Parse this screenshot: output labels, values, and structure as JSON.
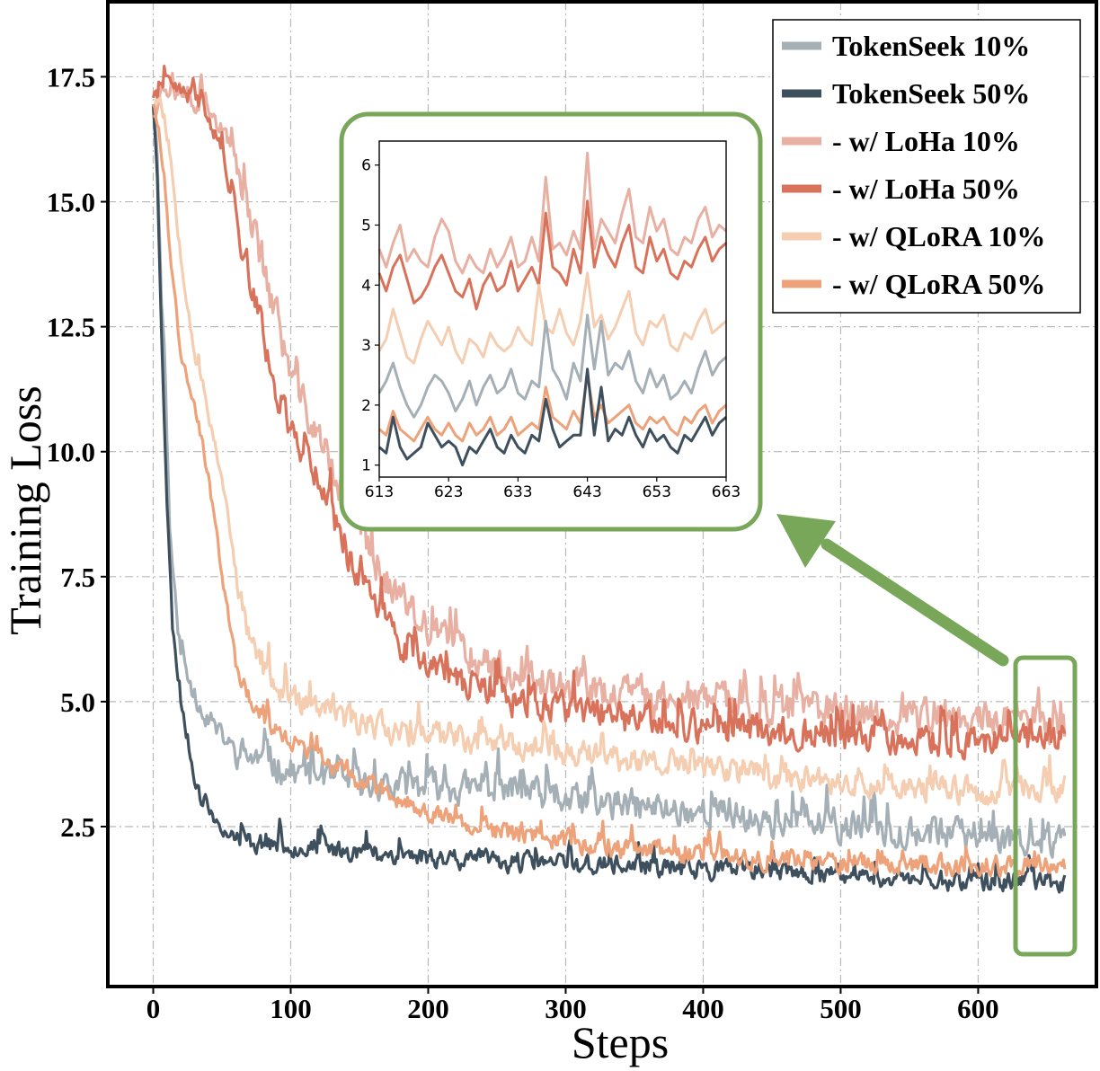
{
  "chart_data": {
    "type": "line",
    "title": "",
    "xlabel": "Steps",
    "ylabel": "Training Loss",
    "xlim": [
      -33,
      686
    ],
    "ylim": [
      -0.7,
      19
    ],
    "xticks": [
      0,
      100,
      200,
      300,
      400,
      500,
      600
    ],
    "xtick_labels": [
      "0",
      "100",
      "200",
      "300",
      "400",
      "500",
      "600"
    ],
    "yticks": [
      2.5,
      5.0,
      7.5,
      10.0,
      12.5,
      15.0,
      17.5
    ],
    "ytick_labels": [
      "2.5",
      "5.0",
      "7.5",
      "10.0",
      "12.5",
      "15.0",
      "17.5"
    ],
    "grid": true,
    "legend_position": "top-right",
    "series": [
      {
        "name": "TokenSeek 10%",
        "color": "#a4afb6",
        "anchors": [
          [
            0,
            17
          ],
          [
            3,
            16
          ],
          [
            6,
            13
          ],
          [
            8,
            12.2
          ],
          [
            12,
            8.5
          ],
          [
            16,
            7
          ],
          [
            20,
            6
          ],
          [
            25,
            5.5
          ],
          [
            30,
            5.1
          ],
          [
            40,
            4.6
          ],
          [
            50,
            4.3
          ],
          [
            60,
            4
          ],
          [
            80,
            3.8
          ],
          [
            100,
            3.6
          ],
          [
            150,
            3.3
          ],
          [
            200,
            3.3
          ],
          [
            250,
            3.2
          ],
          [
            300,
            3.0
          ],
          [
            350,
            2.9
          ],
          [
            400,
            2.8
          ],
          [
            450,
            2.6
          ],
          [
            500,
            2.5
          ],
          [
            550,
            2.4
          ],
          [
            600,
            2.3
          ],
          [
            640,
            2.2
          ],
          [
            663,
            2.3
          ]
        ],
        "noise": 0.35,
        "seed": 11
      },
      {
        "name": "TokenSeek 50%",
        "color": "#3e4f5d",
        "anchors": [
          [
            0,
            17
          ],
          [
            3,
            15.5
          ],
          [
            6,
            12.5
          ],
          [
            10,
            9
          ],
          [
            14,
            6.5
          ],
          [
            20,
            5
          ],
          [
            25,
            4.2
          ],
          [
            30,
            3.5
          ],
          [
            35,
            3.0
          ],
          [
            45,
            2.6
          ],
          [
            55,
            2.35
          ],
          [
            70,
            2.2
          ],
          [
            100,
            2.1
          ],
          [
            150,
            2.0
          ],
          [
            200,
            1.9
          ],
          [
            250,
            1.8
          ],
          [
            300,
            1.75
          ],
          [
            350,
            1.7
          ],
          [
            400,
            1.65
          ],
          [
            450,
            1.6
          ],
          [
            500,
            1.5
          ],
          [
            550,
            1.45
          ],
          [
            600,
            1.4
          ],
          [
            663,
            1.4
          ]
        ],
        "noise": 0.22,
        "seed": 23
      },
      {
        "name": "- w/ LoHa 10%",
        "color": "#e8b0a2",
        "anchors": [
          [
            0,
            16.8
          ],
          [
            5,
            17.2
          ],
          [
            10,
            17.3
          ],
          [
            20,
            17.2
          ],
          [
            30,
            17.0
          ],
          [
            40,
            17.0
          ],
          [
            50,
            16.4
          ],
          [
            60,
            15.8
          ],
          [
            70,
            14.8
          ],
          [
            80,
            13.7
          ],
          [
            90,
            12.6
          ],
          [
            100,
            11.5
          ],
          [
            120,
            10.3
          ],
          [
            140,
            9.0
          ],
          [
            160,
            7.8
          ],
          [
            180,
            7.0
          ],
          [
            200,
            6.4
          ],
          [
            250,
            5.7
          ],
          [
            300,
            5.3
          ],
          [
            350,
            5.1
          ],
          [
            400,
            5.0
          ],
          [
            450,
            4.9
          ],
          [
            500,
            4.8
          ],
          [
            550,
            4.7
          ],
          [
            600,
            4.6
          ],
          [
            663,
            4.5
          ]
        ],
        "noise": 0.4,
        "seed": 37
      },
      {
        "name": "- w/ LoHa 50%",
        "color": "#d9725a",
        "anchors": [
          [
            0,
            16.9
          ],
          [
            5,
            17.3
          ],
          [
            10,
            17.3
          ],
          [
            20,
            17.2
          ],
          [
            30,
            17.1
          ],
          [
            40,
            16.8
          ],
          [
            50,
            16.0
          ],
          [
            60,
            14.8
          ],
          [
            70,
            13.5
          ],
          [
            80,
            12.3
          ],
          [
            90,
            11.2
          ],
          [
            100,
            10.5
          ],
          [
            120,
            9.5
          ],
          [
            140,
            8.0
          ],
          [
            160,
            7.0
          ],
          [
            180,
            6.2
          ],
          [
            200,
            5.7
          ],
          [
            250,
            5.1
          ],
          [
            300,
            4.8
          ],
          [
            350,
            4.6
          ],
          [
            400,
            4.5
          ],
          [
            450,
            4.4
          ],
          [
            500,
            4.3
          ],
          [
            550,
            4.2
          ],
          [
            600,
            4.2
          ],
          [
            663,
            4.3
          ]
        ],
        "noise": 0.35,
        "seed": 41
      },
      {
        "name": "- w/ QLoRA 10%",
        "color": "#f5cdb0",
        "anchors": [
          [
            0,
            17
          ],
          [
            4,
            17.1
          ],
          [
            8,
            16.7
          ],
          [
            12,
            16.0
          ],
          [
            16,
            15.0
          ],
          [
            20,
            14.0
          ],
          [
            25,
            13.0
          ],
          [
            30,
            12.0
          ],
          [
            40,
            10.8
          ],
          [
            50,
            9.5
          ],
          [
            60,
            7.5
          ],
          [
            70,
            6.3
          ],
          [
            80,
            5.6
          ],
          [
            100,
            5.0
          ],
          [
            150,
            4.6
          ],
          [
            200,
            4.3
          ],
          [
            250,
            4.2
          ],
          [
            300,
            4.0
          ],
          [
            350,
            3.8
          ],
          [
            400,
            3.7
          ],
          [
            450,
            3.5
          ],
          [
            500,
            3.4
          ],
          [
            550,
            3.3
          ],
          [
            600,
            3.2
          ],
          [
            663,
            3.3
          ]
        ],
        "noise": 0.3,
        "seed": 53
      },
      {
        "name": "- w/ QLoRA 50%",
        "color": "#eda27a",
        "anchors": [
          [
            0,
            17
          ],
          [
            4,
            16.5
          ],
          [
            8,
            15.5
          ],
          [
            12,
            14
          ],
          [
            16,
            13
          ],
          [
            20,
            12
          ],
          [
            25,
            11.5
          ],
          [
            30,
            11
          ],
          [
            40,
            9.5
          ],
          [
            50,
            7.5
          ],
          [
            60,
            5.8
          ],
          [
            70,
            5.0
          ],
          [
            80,
            4.6
          ],
          [
            100,
            4.2
          ],
          [
            150,
            3.4
          ],
          [
            200,
            2.8
          ],
          [
            250,
            2.4
          ],
          [
            300,
            2.2
          ],
          [
            350,
            2.0
          ],
          [
            400,
            1.9
          ],
          [
            450,
            1.85
          ],
          [
            500,
            1.8
          ],
          [
            550,
            1.75
          ],
          [
            600,
            1.7
          ],
          [
            663,
            1.75
          ]
        ],
        "noise": 0.22,
        "seed": 67
      }
    ],
    "inset": {
      "xlim": [
        613,
        663
      ],
      "ylim": [
        0.8,
        6.4
      ],
      "xticks": [
        613,
        623,
        633,
        643,
        653,
        663
      ],
      "xtick_labels": [
        "613",
        "623",
        "633",
        "643",
        "653",
        "663"
      ],
      "yticks": [
        1,
        2,
        3,
        4,
        5,
        6
      ],
      "ytick_labels": [
        "1",
        "2",
        "3",
        "4",
        "5",
        "6"
      ],
      "series": [
        {
          "name": "- w/ LoHa 10%",
          "color": "#e8b0a2",
          "x_start": 613,
          "values": [
            4.6,
            4.3,
            4.7,
            5.0,
            4.4,
            4.6,
            4.4,
            4.3,
            4.8,
            5.1,
            4.9,
            4.4,
            4.2,
            4.5,
            4.3,
            4.2,
            4.6,
            4.3,
            4.5,
            4.8,
            4.3,
            4.4,
            4.8,
            4.4,
            5.8,
            4.6,
            4.7,
            4.5,
            4.9,
            4.6,
            6.2,
            4.6,
            5.1,
            4.9,
            4.7,
            5.2,
            5.6,
            4.8,
            4.7,
            5.3,
            4.9,
            5.1,
            4.6,
            4.5,
            4.8,
            4.7,
            5.1,
            5.3,
            4.8,
            5.0,
            4.9
          ]
        },
        {
          "name": "- w/ LoHa 50%",
          "color": "#d9725a",
          "x_start": 613,
          "values": [
            4.2,
            3.9,
            4.3,
            4.5,
            4.1,
            3.7,
            3.8,
            4.0,
            4.3,
            4.5,
            4.2,
            3.9,
            3.8,
            4.1,
            3.6,
            4.0,
            4.2,
            3.9,
            4.0,
            4.4,
            3.9,
            4.1,
            4.3,
            4.0,
            5.2,
            4.3,
            4.2,
            4.0,
            4.6,
            4.2,
            5.4,
            4.3,
            4.8,
            4.5,
            4.3,
            4.7,
            5.0,
            4.3,
            4.2,
            4.8,
            4.4,
            4.6,
            4.2,
            4.1,
            4.4,
            4.3,
            4.6,
            4.8,
            4.4,
            4.6,
            4.7
          ]
        },
        {
          "name": "- w/ QLoRA 10%",
          "color": "#f5cdb0",
          "x_start": 613,
          "values": [
            2.9,
            3.1,
            3.6,
            3.2,
            2.8,
            2.7,
            3.1,
            3.4,
            3.2,
            3.0,
            3.3,
            2.9,
            2.7,
            3.1,
            3.0,
            2.8,
            3.2,
            3.0,
            2.9,
            3.0,
            3.3,
            3.1,
            3.0,
            4.0,
            3.3,
            3.2,
            3.6,
            3.2,
            3.0,
            3.4,
            4.2,
            3.3,
            3.5,
            3.1,
            3.3,
            3.6,
            3.9,
            3.2,
            3.0,
            3.4,
            3.3,
            3.5,
            3.0,
            2.9,
            3.2,
            3.1,
            3.4,
            3.6,
            3.2,
            3.3,
            3.4
          ]
        },
        {
          "name": "TokenSeek 10%",
          "color": "#a4afb6",
          "x_start": 613,
          "values": [
            2.2,
            2.4,
            2.7,
            2.3,
            2.0,
            1.8,
            2.0,
            2.3,
            2.5,
            2.4,
            2.2,
            1.9,
            2.1,
            2.4,
            2.0,
            2.3,
            2.5,
            2.2,
            2.3,
            2.6,
            2.2,
            2.1,
            2.4,
            2.3,
            3.4,
            2.6,
            2.4,
            2.1,
            2.7,
            2.4,
            3.5,
            2.6,
            3.4,
            2.5,
            2.7,
            2.6,
            2.9,
            2.4,
            2.2,
            2.6,
            2.3,
            2.5,
            2.1,
            2.2,
            2.4,
            2.2,
            2.6,
            2.9,
            2.5,
            2.7,
            2.8
          ]
        },
        {
          "name": "- w/ QLoRA 50%",
          "color": "#eda27a",
          "x_start": 613,
          "values": [
            1.6,
            1.5,
            1.9,
            1.6,
            1.5,
            1.4,
            1.6,
            1.8,
            1.6,
            1.5,
            1.7,
            1.5,
            1.4,
            1.7,
            1.5,
            1.6,
            1.8,
            1.5,
            1.6,
            1.8,
            1.5,
            1.6,
            1.7,
            1.6,
            2.3,
            1.8,
            1.7,
            1.6,
            1.9,
            1.7,
            2.5,
            1.8,
            2.0,
            1.7,
            1.8,
            1.9,
            2.0,
            1.7,
            1.6,
            1.8,
            1.7,
            1.8,
            1.6,
            1.5,
            1.8,
            1.7,
            1.9,
            2.0,
            1.7,
            1.9,
            2.0
          ]
        },
        {
          "name": "TokenSeek 50%",
          "color": "#3e4f5d",
          "x_start": 613,
          "values": [
            1.3,
            1.2,
            1.8,
            1.3,
            1.1,
            1.2,
            1.3,
            1.7,
            1.5,
            1.3,
            1.4,
            1.3,
            1.0,
            1.3,
            1.2,
            1.4,
            1.6,
            1.3,
            1.2,
            1.5,
            1.3,
            1.2,
            1.5,
            1.4,
            2.1,
            1.6,
            1.3,
            1.4,
            1.5,
            1.5,
            2.6,
            1.5,
            2.3,
            1.4,
            1.6,
            1.5,
            1.8,
            1.5,
            1.3,
            1.6,
            1.4,
            1.5,
            1.3,
            1.2,
            1.5,
            1.4,
            1.6,
            1.8,
            1.5,
            1.7,
            1.8
          ]
        }
      ]
    }
  }
}
